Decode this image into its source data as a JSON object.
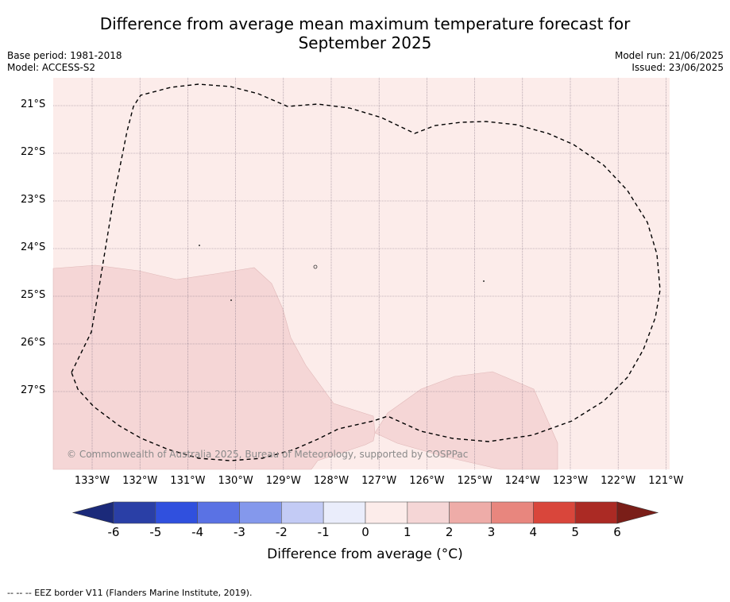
{
  "title_line1": "Difference from average mean maximum temperature forecast for",
  "title_line2": "September 2025",
  "base_period": "Base period: 1981-2018",
  "model": "Model: ACCESS-S2",
  "model_run": "Model run: 21/06/2025",
  "issued": "Issued: 23/06/2025",
  "lat_labels": [
    "21°S",
    "22°S",
    "23°S",
    "24°S",
    "25°S",
    "26°S",
    "27°S"
  ],
  "lon_labels": [
    "133°W",
    "132°W",
    "131°W",
    "130°W",
    "129°W",
    "128°W",
    "127°W",
    "126°W",
    "125°W",
    "124°W",
    "123°W",
    "122°W",
    "121°W"
  ],
  "colorbar": {
    "ticks": [
      "-6",
      "-5",
      "-4",
      "-3",
      "-2",
      "-1",
      "0",
      "1",
      "2",
      "3",
      "4",
      "5",
      "6"
    ],
    "colors": [
      "#2a3fa6",
      "#3050de",
      "#5a72e4",
      "#8498ec",
      "#c3cbf5",
      "#eaedfb",
      "#fcecea",
      "#f5d6d6",
      "#eeaca8",
      "#e8867e",
      "#d9463b",
      "#ab2a24"
    ],
    "under_color": "#1b2a7a",
    "over_color": "#7a1e18",
    "label": "Difference from average (°C)"
  },
  "map_colors": {
    "background": "#fcecea",
    "anomaly_1_2": "#f5d6d6",
    "eez": "#000000"
  },
  "copyright": "© Commonwealth of Australia 2025, Bureau of Meteorology, supported by COSPPac",
  "footer": "-- -- -- EEZ border V11 (Flanders Marine Institute, 2019)."
}
